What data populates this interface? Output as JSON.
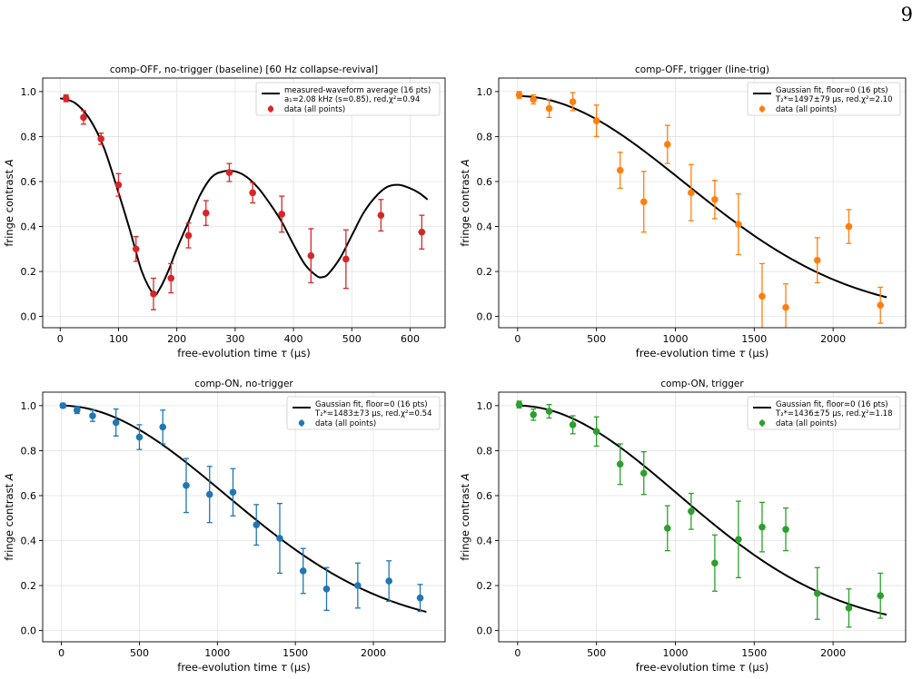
{
  "page_number": "9",
  "colors": {
    "fit": "#000000",
    "panel1": "#d62728",
    "panel2": "#ff7f0e",
    "panel3": "#1f77b4",
    "panel4": "#2ca02c"
  },
  "chart_data": [
    {
      "type": "scatter",
      "title": "comp-OFF, no-trigger (baseline)  [60 Hz collapse-revival]",
      "xlabel": "free-evolution time τ (μs)",
      "ylabel": "fringe contrast A",
      "xlim": [
        -30,
        660
      ],
      "ylim": [
        -0.05,
        1.06
      ],
      "xticks": [
        0,
        100,
        200,
        300,
        400,
        500,
        600
      ],
      "yticks": [
        0.0,
        0.2,
        0.4,
        0.6,
        0.8,
        1.0
      ],
      "grid": true,
      "legend_position": "top-right",
      "color": "#d62728",
      "fit": {
        "name": "measured-waveform average (16 pts)",
        "name_line2": "a₁=2.08 kHz (s=0.85), red.χ²=0.94",
        "x": [
          0,
          25,
          50,
          75,
          100,
          120,
          140,
          160,
          170,
          185,
          200,
          220,
          240,
          260,
          280,
          300,
          320,
          340,
          360,
          380,
          400,
          420,
          440,
          450,
          460,
          480,
          500,
          520,
          540,
          560,
          580,
          600,
          615,
          630
        ],
        "y": [
          0.97,
          0.95,
          0.88,
          0.75,
          0.55,
          0.38,
          0.2,
          0.1,
          0.12,
          0.2,
          0.3,
          0.42,
          0.54,
          0.62,
          0.645,
          0.645,
          0.62,
          0.57,
          0.5,
          0.42,
          0.32,
          0.23,
          0.18,
          0.175,
          0.19,
          0.26,
          0.36,
          0.46,
          0.53,
          0.575,
          0.585,
          0.57,
          0.55,
          0.52
        ]
      },
      "series": [
        {
          "name": "data (all points)",
          "x": [
            10,
            40,
            70,
            100,
            130,
            160,
            190,
            220,
            250,
            290,
            330,
            380,
            430,
            490,
            550,
            620
          ],
          "y": [
            0.97,
            0.885,
            0.79,
            0.585,
            0.3,
            0.1,
            0.17,
            0.36,
            0.46,
            0.64,
            0.55,
            0.455,
            0.27,
            0.255,
            0.45,
            0.375
          ],
          "err": [
            0.015,
            0.03,
            0.025,
            0.05,
            0.055,
            0.07,
            0.065,
            0.055,
            0.055,
            0.04,
            0.045,
            0.08,
            0.12,
            0.13,
            0.07,
            0.075
          ]
        }
      ]
    },
    {
      "type": "scatter",
      "title": "comp-OFF, trigger (line-trig)",
      "xlabel": "free-evolution time τ (μs)",
      "ylabel": "fringe contrast A",
      "xlim": [
        -120,
        2460
      ],
      "ylim": [
        -0.05,
        1.06
      ],
      "xticks": [
        0,
        500,
        1000,
        1500,
        2000
      ],
      "yticks": [
        0.0,
        0.2,
        0.4,
        0.6,
        0.8,
        1.0
      ],
      "grid": true,
      "legend_position": "top-right",
      "color": "#ff7f0e",
      "fit": {
        "name": "Gaussian fit, floor=0 (16 pts)",
        "name_line2": "T₂*=1497±79 μs, red.χ²=2.10",
        "tau": 1497,
        "amplitude": 0.98
      },
      "series": [
        {
          "name": "data (all points)",
          "x": [
            10,
            100,
            200,
            350,
            500,
            650,
            800,
            950,
            1100,
            1250,
            1400,
            1550,
            1700,
            1900,
            2100,
            2300
          ],
          "y": [
            0.985,
            0.965,
            0.925,
            0.955,
            0.87,
            0.65,
            0.51,
            0.765,
            0.55,
            0.52,
            0.41,
            0.09,
            0.04,
            0.25,
            0.4,
            0.05
          ],
          "err": [
            0.015,
            0.02,
            0.04,
            0.04,
            0.07,
            0.08,
            0.135,
            0.085,
            0.125,
            0.085,
            0.135,
            0.145,
            0.105,
            0.1,
            0.075,
            0.08
          ]
        }
      ]
    },
    {
      "type": "scatter",
      "title": "comp-ON, no-trigger",
      "xlabel": "free-evolution time τ (μs)",
      "ylabel": "fringe contrast A",
      "xlim": [
        -120,
        2460
      ],
      "ylim": [
        -0.05,
        1.06
      ],
      "xticks": [
        0,
        500,
        1000,
        1500,
        2000
      ],
      "yticks": [
        0.0,
        0.2,
        0.4,
        0.6,
        0.8,
        1.0
      ],
      "grid": true,
      "legend_position": "top-right",
      "color": "#1f77b4",
      "fit": {
        "name": "Gaussian fit, floor=0 (16 pts)",
        "name_line2": "T₂*=1483±73 μs, red.χ²=0.54",
        "tau": 1483,
        "amplitude": 1.0
      },
      "series": [
        {
          "name": "data (all points)",
          "x": [
            10,
            100,
            200,
            350,
            500,
            650,
            800,
            950,
            1100,
            1250,
            1400,
            1550,
            1700,
            1900,
            2100,
            2300
          ],
          "y": [
            1.0,
            0.98,
            0.955,
            0.925,
            0.86,
            0.905,
            0.645,
            0.605,
            0.615,
            0.47,
            0.41,
            0.265,
            0.185,
            0.2,
            0.22,
            0.145
          ],
          "err": [
            0.01,
            0.015,
            0.025,
            0.06,
            0.055,
            0.075,
            0.12,
            0.125,
            0.105,
            0.09,
            0.155,
            0.1,
            0.095,
            0.1,
            0.09,
            0.06
          ]
        }
      ]
    },
    {
      "type": "scatter",
      "title": "comp-ON, trigger",
      "xlabel": "free-evolution time τ (μs)",
      "ylabel": "fringe contrast A",
      "xlim": [
        -120,
        2460
      ],
      "ylim": [
        -0.05,
        1.06
      ],
      "xticks": [
        0,
        500,
        1000,
        1500,
        2000
      ],
      "yticks": [
        0.0,
        0.2,
        0.4,
        0.6,
        0.8,
        1.0
      ],
      "grid": true,
      "legend_position": "top-right",
      "color": "#2ca02c",
      "fit": {
        "name": "Gaussian fit, floor=0 (16 pts)",
        "name_line2": "T₂*=1436±75 μs, red.χ²=1.18",
        "tau": 1436,
        "amplitude": 1.0
      },
      "series": [
        {
          "name": "data (all points)",
          "x": [
            10,
            100,
            200,
            350,
            500,
            650,
            800,
            950,
            1100,
            1250,
            1400,
            1550,
            1700,
            1900,
            2100,
            2300
          ],
          "y": [
            1.005,
            0.96,
            0.975,
            0.915,
            0.885,
            0.74,
            0.7,
            0.455,
            0.53,
            0.3,
            0.405,
            0.46,
            0.45,
            0.165,
            0.1,
            0.155
          ],
          "err": [
            0.015,
            0.025,
            0.03,
            0.04,
            0.065,
            0.09,
            0.095,
            0.1,
            0.08,
            0.125,
            0.17,
            0.11,
            0.095,
            0.115,
            0.085,
            0.1
          ]
        }
      ]
    }
  ]
}
